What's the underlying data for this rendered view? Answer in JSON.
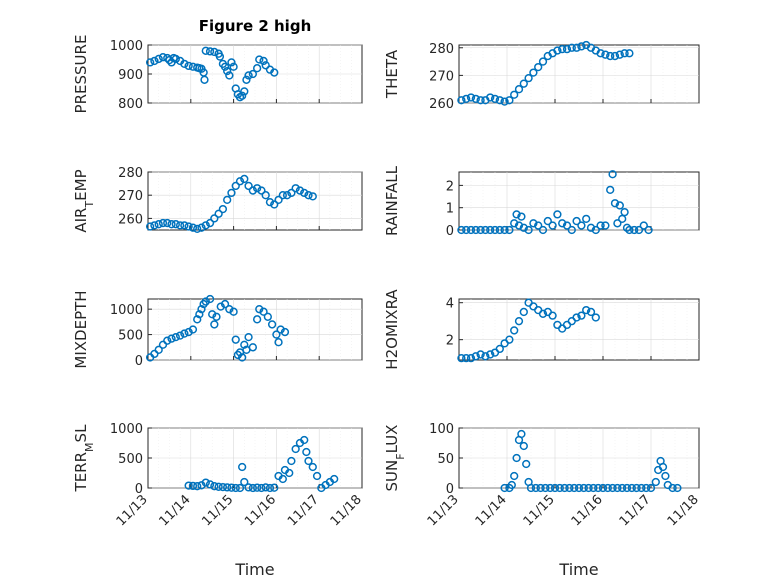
{
  "colors": {
    "marker": "#0072BD",
    "axis": "#262626",
    "grid": "#d9d9d9"
  },
  "chart_data": [
    {
      "type": "scatter",
      "title": "Figure 2 high",
      "ylabel": "PRESSURE",
      "ylim": [
        800,
        1000
      ],
      "yticks": [
        "800",
        "900",
        "1000"
      ],
      "xlim": [
        0,
        5
      ],
      "xticks": [],
      "xlabel": "",
      "grid": true,
      "points": [
        [
          0.05,
          940
        ],
        [
          0.15,
          945
        ],
        [
          0.25,
          952
        ],
        [
          0.35,
          958
        ],
        [
          0.45,
          955
        ],
        [
          0.5,
          948
        ],
        [
          0.55,
          940
        ],
        [
          0.6,
          955
        ],
        [
          0.65,
          952
        ],
        [
          0.75,
          945
        ],
        [
          0.85,
          935
        ],
        [
          0.95,
          928
        ],
        [
          1.05,
          925
        ],
        [
          1.15,
          922
        ],
        [
          1.2,
          920
        ],
        [
          1.25,
          918
        ],
        [
          1.3,
          905
        ],
        [
          1.32,
          880
        ],
        [
          1.35,
          980
        ],
        [
          1.45,
          978
        ],
        [
          1.55,
          976
        ],
        [
          1.65,
          970
        ],
        [
          1.68,
          960
        ],
        [
          1.75,
          935
        ],
        [
          1.8,
          925
        ],
        [
          1.85,
          910
        ],
        [
          1.9,
          895
        ],
        [
          1.95,
          940
        ],
        [
          2.0,
          925
        ],
        [
          2.05,
          850
        ],
        [
          2.1,
          830
        ],
        [
          2.15,
          820
        ],
        [
          2.2,
          825
        ],
        [
          2.25,
          840
        ],
        [
          2.3,
          880
        ],
        [
          2.35,
          895
        ],
        [
          2.45,
          900
        ],
        [
          2.55,
          920
        ],
        [
          2.6,
          950
        ],
        [
          2.7,
          945
        ],
        [
          2.75,
          930
        ],
        [
          2.85,
          915
        ],
        [
          2.95,
          905
        ]
      ]
    },
    {
      "type": "scatter",
      "title": "",
      "ylabel": "THETA",
      "ylim": [
        260,
        281
      ],
      "yticks": [
        "260",
        "270",
        "280"
      ],
      "xlim": [
        0,
        5
      ],
      "xticks": [],
      "xlabel": "",
      "grid": true,
      "points": [
        [
          0.05,
          261
        ],
        [
          0.15,
          261.5
        ],
        [
          0.25,
          262
        ],
        [
          0.35,
          261.5
        ],
        [
          0.45,
          261
        ],
        [
          0.55,
          261
        ],
        [
          0.65,
          262
        ],
        [
          0.75,
          261.5
        ],
        [
          0.85,
          261
        ],
        [
          0.95,
          260.5
        ],
        [
          1.05,
          261
        ],
        [
          1.15,
          263
        ],
        [
          1.25,
          265
        ],
        [
          1.35,
          267
        ],
        [
          1.45,
          269
        ],
        [
          1.55,
          271
        ],
        [
          1.65,
          273
        ],
        [
          1.75,
          275
        ],
        [
          1.85,
          277
        ],
        [
          1.95,
          278
        ],
        [
          2.05,
          279
        ],
        [
          2.15,
          279.5
        ],
        [
          2.25,
          279.5
        ],
        [
          2.35,
          280
        ],
        [
          2.45,
          280
        ],
        [
          2.55,
          280.5
        ],
        [
          2.65,
          281
        ],
        [
          2.75,
          280
        ],
        [
          2.85,
          279
        ],
        [
          2.95,
          278
        ],
        [
          3.05,
          277.5
        ],
        [
          3.15,
          277
        ],
        [
          3.25,
          277
        ],
        [
          3.35,
          277.5
        ],
        [
          3.45,
          278
        ],
        [
          3.55,
          278
        ]
      ]
    },
    {
      "type": "scatter",
      "title": "",
      "ylabel": "AIR_TEMP",
      "ylim": [
        255,
        280
      ],
      "yticks": [
        "260",
        "270",
        "280"
      ],
      "xlim": [
        0,
        5
      ],
      "xticks": [],
      "xlabel": "",
      "grid": true,
      "points": [
        [
          0.05,
          256.5
        ],
        [
          0.15,
          257
        ],
        [
          0.25,
          257.5
        ],
        [
          0.35,
          258
        ],
        [
          0.45,
          258
        ],
        [
          0.55,
          257.5
        ],
        [
          0.65,
          257.5
        ],
        [
          0.75,
          257
        ],
        [
          0.85,
          257
        ],
        [
          0.95,
          256.5
        ],
        [
          1.05,
          256
        ],
        [
          1.15,
          255.5
        ],
        [
          1.25,
          256
        ],
        [
          1.35,
          257
        ],
        [
          1.45,
          258
        ],
        [
          1.55,
          260
        ],
        [
          1.65,
          262
        ],
        [
          1.75,
          264
        ],
        [
          1.85,
          268
        ],
        [
          1.95,
          271
        ],
        [
          2.05,
          274
        ],
        [
          2.15,
          276
        ],
        [
          2.25,
          277
        ],
        [
          2.35,
          274
        ],
        [
          2.45,
          272
        ],
        [
          2.55,
          273
        ],
        [
          2.65,
          272
        ],
        [
          2.75,
          270
        ],
        [
          2.85,
          267
        ],
        [
          2.95,
          266
        ],
        [
          3.05,
          268
        ],
        [
          3.15,
          270
        ],
        [
          3.25,
          270
        ],
        [
          3.35,
          271
        ],
        [
          3.45,
          273
        ],
        [
          3.55,
          272
        ],
        [
          3.65,
          271
        ],
        [
          3.75,
          270
        ],
        [
          3.85,
          269.5
        ]
      ]
    },
    {
      "type": "scatter",
      "title": "",
      "ylabel": "RAINFALL",
      "ylim": [
        0,
        2.6
      ],
      "yticks": [
        "0",
        "1",
        "2"
      ],
      "xlim": [
        0,
        5
      ],
      "xticks": [],
      "xlabel": "",
      "grid": true,
      "points": [
        [
          0.05,
          0
        ],
        [
          0.15,
          0
        ],
        [
          0.25,
          0
        ],
        [
          0.35,
          0
        ],
        [
          0.45,
          0
        ],
        [
          0.55,
          0
        ],
        [
          0.65,
          0
        ],
        [
          0.75,
          0
        ],
        [
          0.85,
          0
        ],
        [
          0.95,
          0
        ],
        [
          1.05,
          0
        ],
        [
          1.15,
          0.3
        ],
        [
          1.2,
          0.7
        ],
        [
          1.25,
          0.2
        ],
        [
          1.3,
          0.6
        ],
        [
          1.35,
          0.1
        ],
        [
          1.45,
          0
        ],
        [
          1.55,
          0.3
        ],
        [
          1.65,
          0.2
        ],
        [
          1.75,
          0
        ],
        [
          1.85,
          0.4
        ],
        [
          1.95,
          0.2
        ],
        [
          2.05,
          0.7
        ],
        [
          2.15,
          0.3
        ],
        [
          2.25,
          0.2
        ],
        [
          2.35,
          0
        ],
        [
          2.45,
          0.4
        ],
        [
          2.55,
          0.2
        ],
        [
          2.65,
          0.5
        ],
        [
          2.75,
          0.1
        ],
        [
          2.85,
          0
        ],
        [
          2.95,
          0.2
        ],
        [
          3.05,
          0.2
        ],
        [
          3.15,
          1.8
        ],
        [
          3.2,
          2.5
        ],
        [
          3.25,
          1.2
        ],
        [
          3.3,
          0.3
        ],
        [
          3.35,
          1.1
        ],
        [
          3.4,
          0.5
        ],
        [
          3.45,
          0.8
        ],
        [
          3.5,
          0.1
        ],
        [
          3.55,
          0
        ],
        [
          3.65,
          0
        ],
        [
          3.75,
          0
        ],
        [
          3.85,
          0.2
        ],
        [
          3.95,
          0
        ]
      ]
    },
    {
      "type": "scatter",
      "title": "",
      "ylabel": "MIXDEPTH",
      "ylim": [
        0,
        1200
      ],
      "yticks": [
        "0",
        "500",
        "1000"
      ],
      "xlim": [
        0,
        5
      ],
      "xticks": [],
      "xlabel": "",
      "grid": true,
      "points": [
        [
          0.05,
          50
        ],
        [
          0.15,
          120
        ],
        [
          0.25,
          200
        ],
        [
          0.35,
          300
        ],
        [
          0.45,
          380
        ],
        [
          0.55,
          420
        ],
        [
          0.65,
          450
        ],
        [
          0.75,
          480
        ],
        [
          0.85,
          520
        ],
        [
          0.95,
          550
        ],
        [
          1.05,
          600
        ],
        [
          1.15,
          800
        ],
        [
          1.2,
          900
        ],
        [
          1.25,
          1000
        ],
        [
          1.3,
          1100
        ],
        [
          1.35,
          1150
        ],
        [
          1.45,
          1200
        ],
        [
          1.5,
          900
        ],
        [
          1.55,
          700
        ],
        [
          1.6,
          850
        ],
        [
          1.7,
          1050
        ],
        [
          1.8,
          1100
        ],
        [
          1.9,
          1000
        ],
        [
          2.0,
          950
        ],
        [
          2.05,
          400
        ],
        [
          2.1,
          100
        ],
        [
          2.15,
          150
        ],
        [
          2.2,
          50
        ],
        [
          2.25,
          300
        ],
        [
          2.3,
          200
        ],
        [
          2.35,
          450
        ],
        [
          2.45,
          250
        ],
        [
          2.55,
          800
        ],
        [
          2.6,
          1000
        ],
        [
          2.7,
          950
        ],
        [
          2.8,
          850
        ],
        [
          2.9,
          700
        ],
        [
          3.0,
          500
        ],
        [
          3.05,
          350
        ],
        [
          3.1,
          600
        ],
        [
          3.2,
          550
        ]
      ]
    },
    {
      "type": "scatter",
      "title": "",
      "ylabel": "H2OMIXRA",
      "ylim": [
        0.9,
        4.2
      ],
      "yticks": [
        "2",
        "4"
      ],
      "xlim": [
        0,
        5
      ],
      "xticks": [],
      "xlabel": "",
      "grid": true,
      "points": [
        [
          0.05,
          1.0
        ],
        [
          0.15,
          1.0
        ],
        [
          0.25,
          1.0
        ],
        [
          0.35,
          1.1
        ],
        [
          0.45,
          1.2
        ],
        [
          0.55,
          1.1
        ],
        [
          0.65,
          1.2
        ],
        [
          0.75,
          1.3
        ],
        [
          0.85,
          1.5
        ],
        [
          0.95,
          1.8
        ],
        [
          1.05,
          2.0
        ],
        [
          1.15,
          2.5
        ],
        [
          1.25,
          3.0
        ],
        [
          1.35,
          3.5
        ],
        [
          1.45,
          4.0
        ],
        [
          1.55,
          3.8
        ],
        [
          1.65,
          3.6
        ],
        [
          1.75,
          3.4
        ],
        [
          1.85,
          3.5
        ],
        [
          1.95,
          3.3
        ],
        [
          2.05,
          2.8
        ],
        [
          2.15,
          2.6
        ],
        [
          2.25,
          2.8
        ],
        [
          2.35,
          3.0
        ],
        [
          2.45,
          3.2
        ],
        [
          2.55,
          3.3
        ],
        [
          2.65,
          3.6
        ],
        [
          2.75,
          3.5
        ],
        [
          2.85,
          3.2
        ]
      ]
    },
    {
      "type": "scatter",
      "title": "",
      "ylabel": "TERR_MSL",
      "ylim": [
        0,
        1000
      ],
      "yticks": [
        "0",
        "500",
        "1000"
      ],
      "xlim": [
        0,
        5
      ],
      "xticks": [
        "11/13",
        "11/14",
        "11/15",
        "11/16",
        "11/17",
        "11/18"
      ],
      "xlabel": "Time",
      "grid": true,
      "points": [
        [
          0.95,
          40
        ],
        [
          1.05,
          35
        ],
        [
          1.15,
          30
        ],
        [
          1.25,
          45
        ],
        [
          1.35,
          90
        ],
        [
          1.45,
          60
        ],
        [
          1.55,
          30
        ],
        [
          1.65,
          20
        ],
        [
          1.75,
          15
        ],
        [
          1.85,
          10
        ],
        [
          1.95,
          5
        ],
        [
          2.05,
          0
        ],
        [
          2.15,
          0
        ],
        [
          2.2,
          350
        ],
        [
          2.25,
          100
        ],
        [
          2.35,
          10
        ],
        [
          2.45,
          0
        ],
        [
          2.55,
          5
        ],
        [
          2.65,
          0
        ],
        [
          2.75,
          10
        ],
        [
          2.85,
          0
        ],
        [
          2.95,
          5
        ],
        [
          3.05,
          200
        ],
        [
          3.15,
          150
        ],
        [
          3.2,
          300
        ],
        [
          3.3,
          250
        ],
        [
          3.35,
          450
        ],
        [
          3.45,
          650
        ],
        [
          3.55,
          750
        ],
        [
          3.65,
          800
        ],
        [
          3.7,
          600
        ],
        [
          3.75,
          450
        ],
        [
          3.85,
          350
        ],
        [
          3.95,
          200
        ],
        [
          4.05,
          0
        ],
        [
          4.15,
          50
        ],
        [
          4.25,
          100
        ],
        [
          4.35,
          150
        ]
      ]
    },
    {
      "type": "scatter",
      "title": "",
      "ylabel": "SUN_FLUX",
      "ylim": [
        0,
        100
      ],
      "yticks": [
        "0",
        "50",
        "100"
      ],
      "xlim": [
        0,
        5
      ],
      "xticks": [
        "11/13",
        "11/14",
        "11/15",
        "11/16",
        "11/17",
        "11/18"
      ],
      "xlabel": "Time",
      "grid": true,
      "points": [
        [
          0.95,
          0
        ],
        [
          1.05,
          0
        ],
        [
          1.1,
          5
        ],
        [
          1.15,
          20
        ],
        [
          1.2,
          50
        ],
        [
          1.25,
          80
        ],
        [
          1.3,
          90
        ],
        [
          1.35,
          70
        ],
        [
          1.4,
          40
        ],
        [
          1.45,
          10
        ],
        [
          1.5,
          0
        ],
        [
          1.6,
          0
        ],
        [
          1.7,
          0
        ],
        [
          1.8,
          0
        ],
        [
          1.9,
          0
        ],
        [
          2.0,
          0
        ],
        [
          2.1,
          0
        ],
        [
          2.2,
          0
        ],
        [
          2.3,
          0
        ],
        [
          2.4,
          0
        ],
        [
          2.5,
          0
        ],
        [
          2.6,
          0
        ],
        [
          2.7,
          0
        ],
        [
          2.8,
          0
        ],
        [
          2.9,
          0
        ],
        [
          3.0,
          0
        ],
        [
          3.1,
          0
        ],
        [
          3.2,
          0
        ],
        [
          3.3,
          0
        ],
        [
          3.4,
          0
        ],
        [
          3.5,
          0
        ],
        [
          3.6,
          0
        ],
        [
          3.7,
          0
        ],
        [
          3.8,
          0
        ],
        [
          3.9,
          0
        ],
        [
          4.0,
          0
        ],
        [
          4.1,
          10
        ],
        [
          4.15,
          30
        ],
        [
          4.2,
          45
        ],
        [
          4.25,
          35
        ],
        [
          4.3,
          20
        ],
        [
          4.35,
          5
        ],
        [
          4.45,
          0
        ],
        [
          4.55,
          0
        ]
      ]
    }
  ]
}
